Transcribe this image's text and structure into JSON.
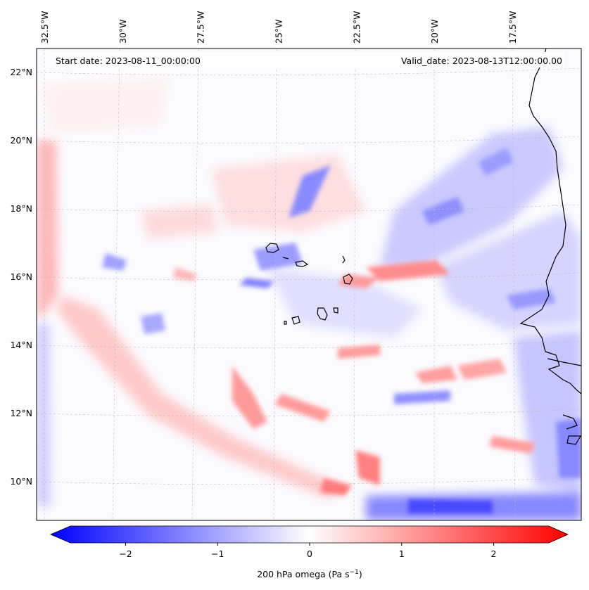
{
  "map": {
    "start_label": "Start date: 2023-08-11_00:00:00",
    "valid_label": "Valid_date: 2023-08-13T12:00:00.00",
    "lon_labels": [
      "32.5°W",
      "30°W",
      "27.5°W",
      "25°W",
      "22.5°W",
      "20°W",
      "17.5°W"
    ],
    "lat_labels": [
      "22°N",
      "20°N",
      "18°N",
      "16°N",
      "14°N",
      "12°N",
      "10°N"
    ],
    "lon_values": [
      -32.5,
      -30,
      -27.5,
      -25,
      -22.5,
      -20,
      -17.5
    ],
    "lat_values": [
      22,
      20,
      18,
      16,
      14,
      12,
      10
    ],
    "lon_range": [
      -32.6,
      -15.0
    ],
    "lat_range": [
      8.9,
      22.8
    ],
    "field": "200 hPa omega",
    "colormap": "bwr",
    "coastline_color": "#000000"
  },
  "colorbar": {
    "label_main": "200 hPa omega (Pa s",
    "label_exp": "−1",
    "label_close": ")",
    "range": [
      -2.6,
      2.6
    ],
    "ticks": [
      {
        "value": -2,
        "label": "−2"
      },
      {
        "value": -1,
        "label": "−1"
      },
      {
        "value": 0,
        "label": "0"
      },
      {
        "value": 1,
        "label": "1"
      },
      {
        "value": 2,
        "label": "2"
      }
    ],
    "extend": "both",
    "color_low": "#0000ff",
    "color_mid": "#ffffff",
    "color_high": "#ff0000"
  }
}
